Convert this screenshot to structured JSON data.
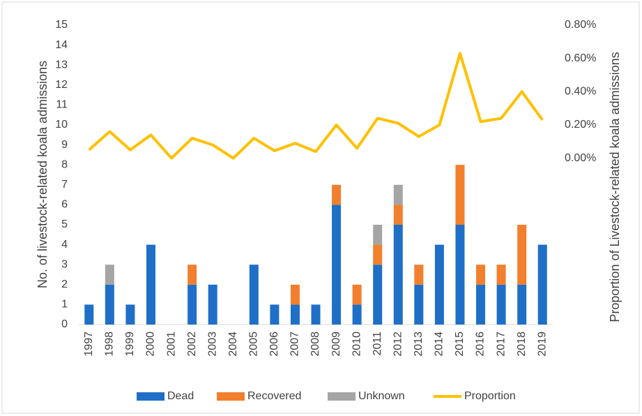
{
  "chart_data": {
    "type": "bar",
    "y_label": "No. of livestock-related  koala admissions",
    "y2_label": "Proportion of Livestock-related koala admissions",
    "categories": [
      "1997",
      "1998",
      "1999",
      "2000",
      "2001",
      "2002",
      "2003",
      "2004",
      "2005",
      "2006",
      "2007",
      "2008",
      "2009",
      "2010",
      "2011",
      "2012",
      "2013",
      "2014",
      "2015",
      "2016",
      "2017",
      "2018",
      "2019"
    ],
    "series": [
      {
        "name": "Dead",
        "color": "#1f6fc7",
        "values": [
          1,
          2,
          1,
          4,
          0,
          2,
          2,
          0,
          3,
          1,
          1,
          1,
          6,
          1,
          3,
          5,
          2,
          4,
          5,
          2,
          2,
          2,
          4
        ]
      },
      {
        "name": "Recovered",
        "color": "#f27f2e",
        "values": [
          0,
          0,
          0,
          0,
          0,
          1,
          0,
          0,
          0,
          0,
          1,
          0,
          1,
          1,
          1,
          1,
          1,
          0,
          3,
          1,
          1,
          3,
          0
        ]
      },
      {
        "name": "Unknown",
        "color": "#a5a5a5",
        "values": [
          0,
          1,
          0,
          0,
          0,
          0,
          0,
          0,
          0,
          0,
          0,
          0,
          0,
          0,
          1,
          1,
          0,
          0,
          0,
          0,
          0,
          0,
          0
        ]
      },
      {
        "name": "Proportion",
        "type": "line",
        "axis": "y2",
        "color": "#ffc000",
        "values": [
          0.05,
          0.16,
          0.05,
          0.14,
          0.0,
          0.12,
          0.08,
          0.0,
          0.12,
          0.045,
          0.09,
          0.04,
          0.2,
          0.06,
          0.24,
          0.21,
          0.13,
          0.2,
          0.63,
          0.22,
          0.24,
          0.4,
          0.23
        ]
      }
    ],
    "stacked": true,
    "ylim": [
      0,
      15
    ],
    "yticks": [
      0,
      1,
      2,
      3,
      4,
      5,
      6,
      7,
      8,
      9,
      10,
      11,
      12,
      13,
      14,
      15
    ],
    "y2lim": [
      -1,
      0.8
    ],
    "y2ticks": [
      {
        "value": 0,
        "label": "0.00%"
      },
      {
        "value": 0.2,
        "label": "0.20%"
      },
      {
        "value": 0.4,
        "label": "0.40%"
      },
      {
        "value": 0.6,
        "label": "0.60%"
      },
      {
        "value": 0.8,
        "label": "0.80%"
      }
    ],
    "legend": "bottom"
  }
}
